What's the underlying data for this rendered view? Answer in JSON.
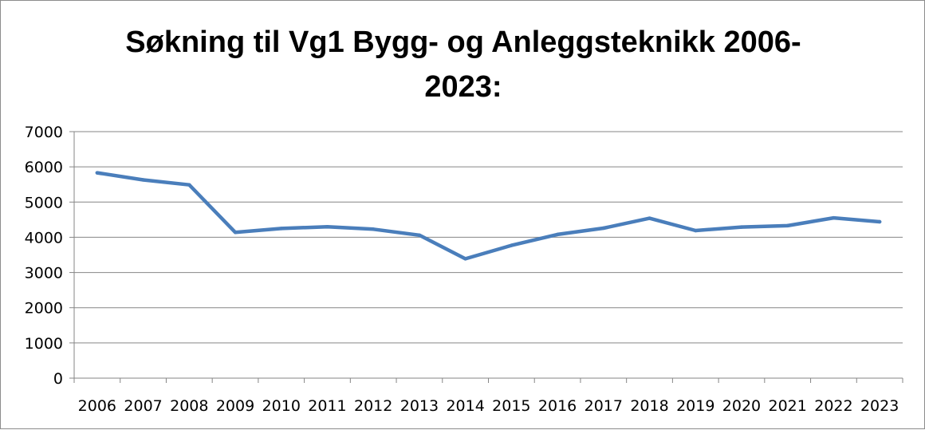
{
  "chart_data": {
    "type": "line",
    "title_lines": [
      "Søkning til Vg1 Bygg- og Anleggsteknikk 2006-",
      "2023:"
    ],
    "categories": [
      "2006",
      "2007",
      "2008",
      "2009",
      "2010",
      "2011",
      "2012",
      "2013",
      "2014",
      "2015",
      "2016",
      "2017",
      "2018",
      "2019",
      "2020",
      "2021",
      "2022",
      "2023"
    ],
    "series": [
      {
        "values": [
          5830,
          5630,
          5490,
          4140,
          4250,
          4300,
          4230,
          4060,
          3390,
          3770,
          4080,
          4260,
          4540,
          4190,
          4290,
          4330,
          4550,
          4440
        ]
      }
    ],
    "yticks": [
      0,
      1000,
      2000,
      3000,
      4000,
      5000,
      6000,
      7000
    ],
    "ylim": [
      0,
      7000
    ],
    "grid": true,
    "legend": "none",
    "colors": {
      "line": "#4a7ebb",
      "grid": "#868686",
      "axis": "#868686"
    }
  }
}
